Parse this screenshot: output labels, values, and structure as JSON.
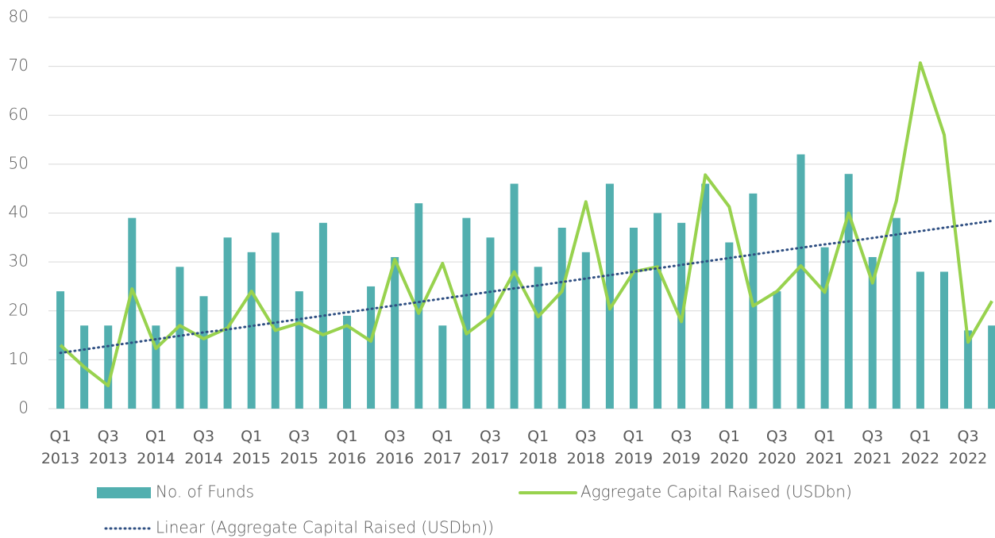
{
  "chart_data": {
    "type": "bar_line",
    "categories": [
      "Q1 2013",
      null,
      "Q3 2013",
      null,
      "Q1 2014",
      null,
      "Q3 2014",
      null,
      "Q1 2015",
      null,
      "Q3 2015",
      null,
      "Q1 2016",
      null,
      "Q3 2016",
      null,
      "Q1 2017",
      null,
      "Q3 2017",
      null,
      "Q1 2018",
      null,
      "Q3 2018",
      null,
      "Q1 2019",
      null,
      "Q3 2019",
      null,
      "Q1 2020",
      null,
      "Q3 2020",
      null,
      "Q1 2021",
      null,
      "Q3 2021",
      null,
      "Q1 2022",
      null,
      "Q3 2022",
      null
    ],
    "series": [
      {
        "name": "No. of Funds",
        "type": "bar",
        "color": "#52afaf",
        "values": [
          24,
          17,
          17,
          39,
          17,
          29,
          23,
          35,
          32,
          36,
          24,
          38,
          19,
          25,
          31,
          42,
          17,
          39,
          35,
          46,
          29,
          37,
          32,
          46,
          37,
          40,
          38,
          46,
          34,
          44,
          24,
          52,
          33,
          48,
          31,
          39,
          28,
          28,
          16,
          17
        ]
      },
      {
        "name": "Aggregate Capital Raised (USDbn)",
        "type": "line",
        "color": "#98d24e",
        "values": [
          13,
          8.5,
          4.7,
          24.5,
          12.3,
          17,
          14.3,
          16.5,
          24,
          16,
          17.5,
          15.1,
          17,
          13.8,
          30.5,
          19.5,
          29.7,
          15.3,
          19,
          28,
          18.8,
          24,
          42.3,
          20.4,
          28,
          29,
          17.8,
          47.8,
          41.3,
          21,
          24,
          29.2,
          23.8,
          40,
          25.7,
          42.5,
          70.7,
          56,
          13.6,
          22
        ]
      },
      {
        "name": "Linear (Aggregate Capital Raised (USDbn))",
        "type": "dotted",
        "color": "#2f4f82",
        "values": [
          11.4,
          12.1,
          12.8,
          13.5,
          14.2,
          14.9,
          15.6,
          16.2,
          16.9,
          17.6,
          18.3,
          19.0,
          19.7,
          20.4,
          21.1,
          21.8,
          22.5,
          23.2,
          23.9,
          24.6,
          25.2,
          25.9,
          26.6,
          27.3,
          28.0,
          28.7,
          29.4,
          30.1,
          30.8,
          31.5,
          32.2,
          32.9,
          33.6,
          34.2,
          34.9,
          35.6,
          36.3,
          37.0,
          37.7,
          38.4
        ]
      }
    ],
    "ylim": [
      0,
      80
    ],
    "yticks": [
      0,
      10,
      20,
      30,
      40,
      50,
      60,
      70,
      80
    ],
    "grid": true
  }
}
